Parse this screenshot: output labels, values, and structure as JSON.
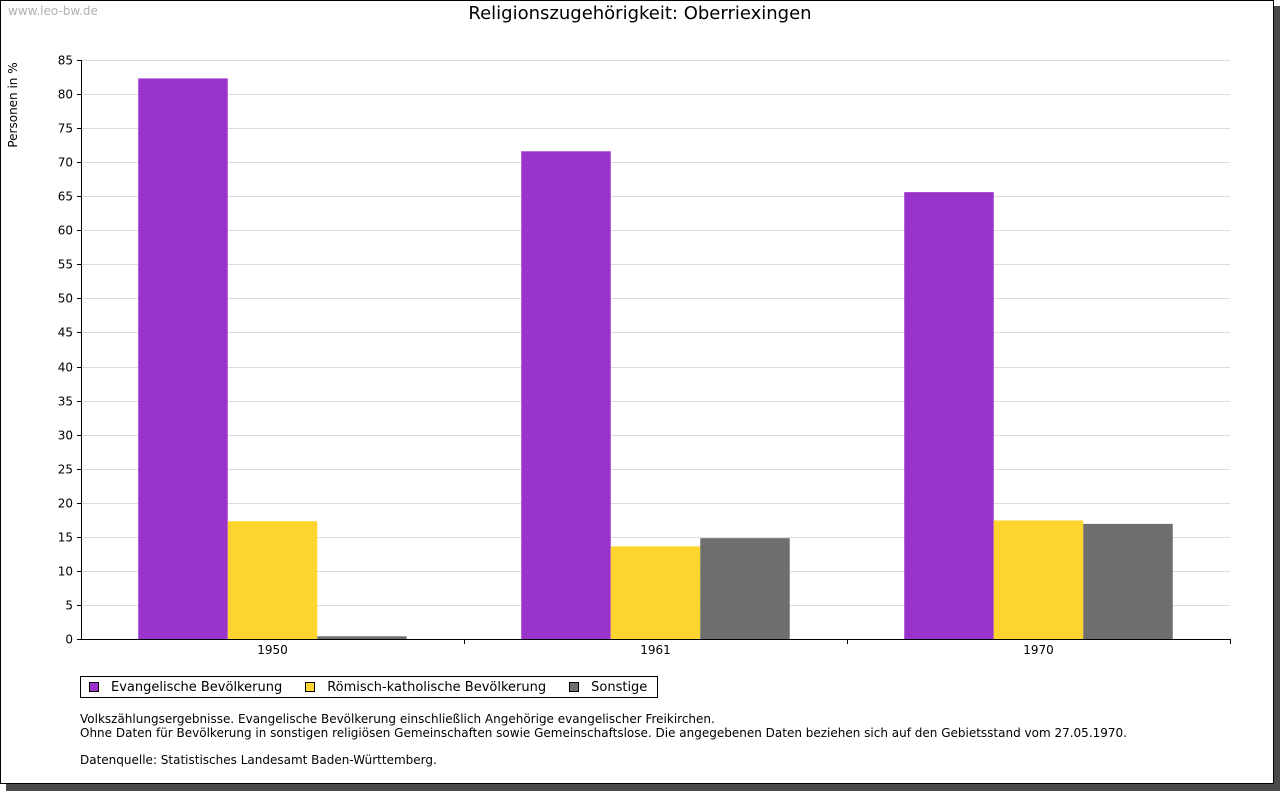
{
  "watermark": "www.leo-bw.de",
  "chart_data": {
    "type": "bar",
    "title": "Religionszugehörigkeit: Oberriexingen",
    "ylabel": "Personen in %",
    "xlabel": "",
    "categories": [
      "1950",
      "1961",
      "1970"
    ],
    "series": [
      {
        "name": "Evangelische Bevölkerung",
        "color": "#9933cc",
        "values": [
          82.3,
          71.6,
          65.6
        ]
      },
      {
        "name": "Römisch-katholische Bevölkerung",
        "color": "#fdd52e",
        "values": [
          17.3,
          13.6,
          17.4
        ]
      },
      {
        "name": "Sonstige",
        "color": "#6e6e6e",
        "values": [
          0.4,
          14.8,
          16.9
        ]
      }
    ],
    "ylim": [
      0,
      85
    ],
    "yticks": [
      "0",
      "5",
      "10",
      "15",
      "20",
      "25",
      "30",
      "35",
      "40",
      "45",
      "50",
      "55",
      "60",
      "65",
      "70",
      "75",
      "80",
      "85"
    ],
    "grid": true,
    "legend_position": "bottom-left"
  },
  "notes": {
    "line1": "Volkszählungsergebnisse. Evangelische Bevölkerung einschließlich Angehörige evangelischer Freikirchen.",
    "line2": "Ohne Daten für Bevölkerung in sonstigen religiösen Gemeinschaften sowie Gemeinschaftslose. Die angegebenen Daten beziehen sich auf den Gebietsstand vom 27.05.1970.",
    "source": "Datenquelle: Statistisches Landesamt Baden-Württemberg."
  }
}
